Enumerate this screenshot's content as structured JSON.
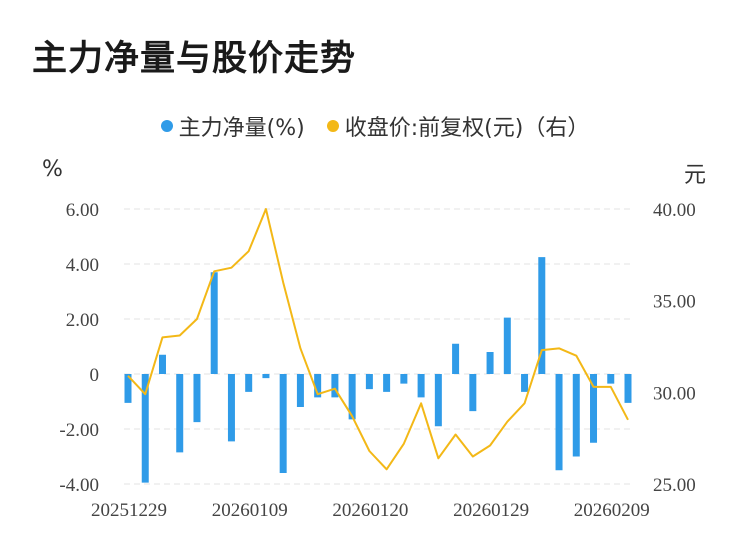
{
  "title": "主力净量与股价走势",
  "legend": {
    "items": [
      {
        "label": "主力净量(%)",
        "color": "#2f9be8"
      },
      {
        "label": "收盘价:前复权(元)（右）",
        "color": "#f3b817"
      }
    ]
  },
  "units": {
    "left": "%",
    "right": "元"
  },
  "chart_data": {
    "type": "bar+line",
    "x_tick_labels": [
      "20251229",
      "20260109",
      "20260120",
      "20260129",
      "20260209"
    ],
    "left_axis": {
      "ticks": [
        "6.00",
        "4.00",
        "2.00",
        "0",
        "-2.00",
        "-4.00"
      ],
      "ylim": [
        -4,
        6
      ]
    },
    "right_axis": {
      "ticks": [
        "40.00",
        "35.00",
        "30.00",
        "25.00"
      ],
      "ylim": [
        25,
        40
      ]
    },
    "grid": true,
    "legend_position": "top",
    "series": [
      {
        "name": "主力净量(%)",
        "type": "bar",
        "color": "#2f9be8",
        "values": [
          -1.05,
          -3.95,
          0.7,
          -2.85,
          -1.75,
          3.7,
          -2.45,
          -0.65,
          -0.15,
          -3.6,
          -1.2,
          -0.85,
          -0.85,
          -1.65,
          -0.55,
          -0.65,
          -0.35,
          -0.85,
          -1.9,
          1.1,
          -1.35,
          0.8,
          2.05,
          -0.65,
          4.25,
          -3.5,
          -3.0,
          -2.5,
          -0.35,
          -1.05
        ]
      },
      {
        "name": "收盘价:前复权(元)（右）",
        "type": "line",
        "color": "#f3b817",
        "values": [
          30.9,
          29.9,
          33.0,
          33.1,
          34.0,
          36.6,
          36.8,
          37.7,
          40.0,
          36.0,
          32.4,
          29.9,
          30.2,
          28.7,
          26.8,
          25.8,
          27.2,
          29.4,
          26.4,
          27.7,
          26.5,
          27.1,
          28.4,
          29.4,
          32.3,
          32.4,
          32.0,
          30.3,
          30.3,
          28.5
        ]
      }
    ]
  }
}
